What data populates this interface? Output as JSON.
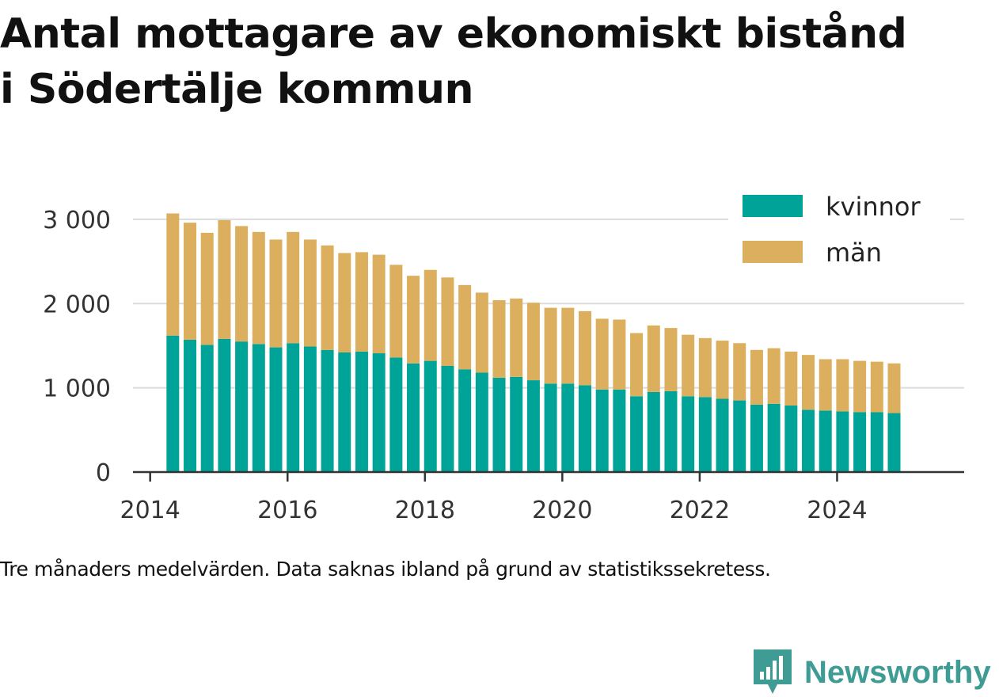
{
  "title_lines": [
    "Antal mottagare av ekonomiskt bistånd",
    "i Södertälje kommun"
  ],
  "caption": "Tre månaders medelvärden. Data saknas ibland på grund av statistikssekretess.",
  "brand": {
    "name": "Newsworthy",
    "icon": "newsworthy-logo-icon",
    "color": "#3f9c95"
  },
  "chart_data": {
    "type": "bar",
    "stacked": true,
    "title": "Antal mottagare av ekonomiskt bistånd i Södertälje kommun",
    "xlabel": "",
    "ylabel": "",
    "x_ticks": [
      "2014",
      "2016",
      "2018",
      "2020",
      "2022",
      "2024"
    ],
    "x_range": [
      2013.75,
      2025.85
    ],
    "y_ticks": [
      0,
      1000,
      2000,
      3000
    ],
    "y_tick_labels": [
      "0",
      "1 000",
      "2 000",
      "3 000"
    ],
    "ylim": [
      0,
      3300
    ],
    "grid": "horizontal",
    "legend_position": "top-right",
    "x": [
      2014.33,
      2014.58,
      2014.83,
      2015.08,
      2015.33,
      2015.58,
      2015.83,
      2016.08,
      2016.33,
      2016.58,
      2016.83,
      2017.08,
      2017.33,
      2017.58,
      2017.83,
      2018.08,
      2018.33,
      2018.58,
      2018.83,
      2019.08,
      2019.33,
      2019.58,
      2019.83,
      2020.08,
      2020.33,
      2020.58,
      2020.83,
      2021.08,
      2021.33,
      2021.58,
      2021.83,
      2022.08,
      2022.33,
      2022.58,
      2022.83,
      2023.08,
      2023.33,
      2023.58,
      2023.83,
      2024.08,
      2024.33,
      2024.58,
      2024.83
    ],
    "series": [
      {
        "name": "kvinnor",
        "color": "#00a398",
        "values": [
          1620,
          1570,
          1510,
          1580,
          1550,
          1520,
          1480,
          1530,
          1490,
          1450,
          1420,
          1430,
          1410,
          1360,
          1290,
          1320,
          1260,
          1220,
          1180,
          1120,
          1130,
          1090,
          1050,
          1050,
          1030,
          980,
          980,
          900,
          950,
          960,
          900,
          890,
          870,
          850,
          800,
          810,
          790,
          740,
          730,
          720,
          710,
          710,
          700
        ]
      },
      {
        "name": "män",
        "color": "#dbaf5d",
        "values": [
          1450,
          1390,
          1330,
          1410,
          1370,
          1330,
          1280,
          1320,
          1270,
          1240,
          1180,
          1180,
          1170,
          1100,
          1040,
          1080,
          1050,
          1000,
          950,
          920,
          930,
          920,
          900,
          900,
          880,
          840,
          830,
          750,
          790,
          750,
          730,
          700,
          690,
          680,
          650,
          660,
          640,
          650,
          610,
          620,
          610,
          600,
          590
        ]
      }
    ]
  }
}
